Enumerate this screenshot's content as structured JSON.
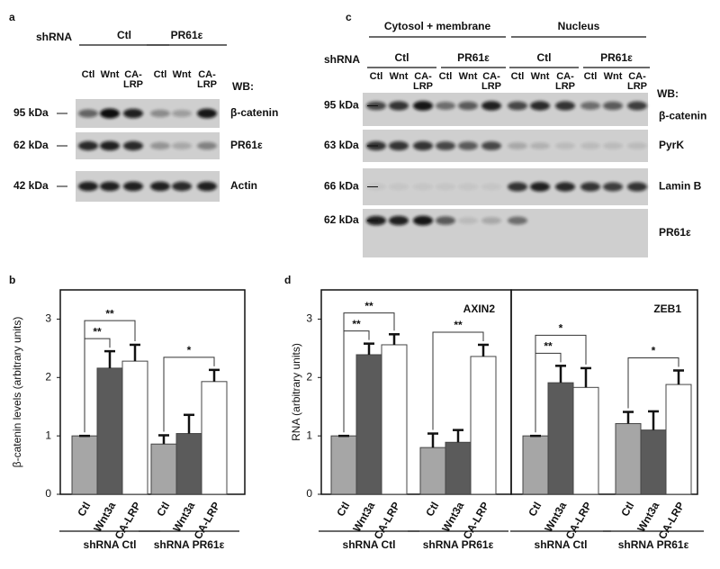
{
  "blot_a": {
    "label": "a",
    "shrna": "shRNA",
    "groups": [
      "Ctl",
      "PR61ε"
    ],
    "lanes": [
      "Ctl",
      "Wnt",
      "CA-\nLRP",
      "Ctl",
      "Wnt",
      "CA-\nLRP"
    ],
    "wb": "WB:",
    "rows": [
      {
        "marker": "95 kDa",
        "protein": "β-catenin"
      },
      {
        "marker": "62 kDa",
        "protein": "PR61ε"
      },
      {
        "marker": "42 kDa",
        "protein": "Actin"
      }
    ]
  },
  "blot_c": {
    "label": "c",
    "fractions": [
      "Cytosol + membrane",
      "Nucleus"
    ],
    "shrna": "shRNA",
    "groups": [
      "Ctl",
      "PR61ε",
      "Ctl",
      "PR61ε"
    ],
    "lanes": [
      "Ctl",
      "Wnt",
      "CA-\nLRP",
      "Ctl",
      "Wnt",
      "CA-\nLRP",
      "Ctl",
      "Wnt",
      "CA-\nLRP",
      "Ctl",
      "Wnt",
      "CA-\nLRP"
    ],
    "wb": "WB:",
    "rows": [
      {
        "marker": "95 kDa",
        "protein": "β-catenin"
      },
      {
        "marker": "63 kDa",
        "protein": "PyrK"
      },
      {
        "marker": "66 kDa",
        "protein": "Lamin B"
      },
      {
        "marker": "62 kDa",
        "protein": "PR61ε"
      }
    ]
  },
  "chart_data": [
    {
      "type": "bar",
      "panel": "b",
      "ylabel": "β-catenin levels (arbitrary units)",
      "categories": [
        "Ctl",
        "Wnt3a",
        "CA-LRP",
        "Ctl",
        "Wnt3a",
        "CA-LRP"
      ],
      "groups": [
        "shRNA Ctl",
        "shRNA PR61ε"
      ],
      "values": [
        1,
        2.16,
        2.28,
        0.86,
        1.04,
        1.93
      ],
      "errors": [
        0,
        0.29,
        0.28,
        0.15,
        0.32,
        0.2
      ],
      "colors": [
        "#a6a6a6",
        "#5b5b5b",
        "#ffffff",
        "#a6a6a6",
        "#5b5b5b",
        "#ffffff"
      ],
      "significance": [
        "**",
        "**",
        "*"
      ],
      "ylim": [
        0,
        3.5
      ],
      "yticks": [
        0,
        1,
        2,
        3
      ]
    },
    {
      "type": "bar",
      "panel": "d",
      "title": "AXIN2",
      "ylabel": "RNA (arbitrary units)",
      "categories": [
        "Ctl",
        "Wnt3a",
        "CA-LRP",
        "Ctl",
        "Wnt3a",
        "CA-LRP"
      ],
      "groups": [
        "shRNA Ctl",
        "shRNA PR61ε"
      ],
      "values": [
        1,
        2.39,
        2.56,
        0.8,
        0.89,
        2.36
      ],
      "errors": [
        0,
        0.19,
        0.18,
        0.24,
        0.21,
        0.2
      ],
      "colors": [
        "#a6a6a6",
        "#5b5b5b",
        "#ffffff",
        "#a6a6a6",
        "#5b5b5b",
        "#ffffff"
      ],
      "significance": [
        "**",
        "**",
        "**"
      ],
      "ylim": [
        0,
        3.5
      ],
      "yticks": [
        0,
        1,
        2,
        3
      ]
    },
    {
      "type": "bar",
      "title": "ZEB1",
      "categories": [
        "Ctl",
        "Wnt3a",
        "CA-LRP",
        "Ctl",
        "Wnt3a",
        "CA-LRP"
      ],
      "groups": [
        "shRNA Ctl",
        "shRNA PR61ε"
      ],
      "values": [
        1,
        1.91,
        1.83,
        1.21,
        1.1,
        1.88
      ],
      "errors": [
        0,
        0.29,
        0.33,
        0.2,
        0.32,
        0.24
      ],
      "colors": [
        "#a6a6a6",
        "#5b5b5b",
        "#ffffff",
        "#a6a6a6",
        "#5b5b5b",
        "#ffffff"
      ],
      "significance": [
        "**",
        "*",
        "*"
      ],
      "ylim": [
        0,
        3.5
      ]
    }
  ]
}
